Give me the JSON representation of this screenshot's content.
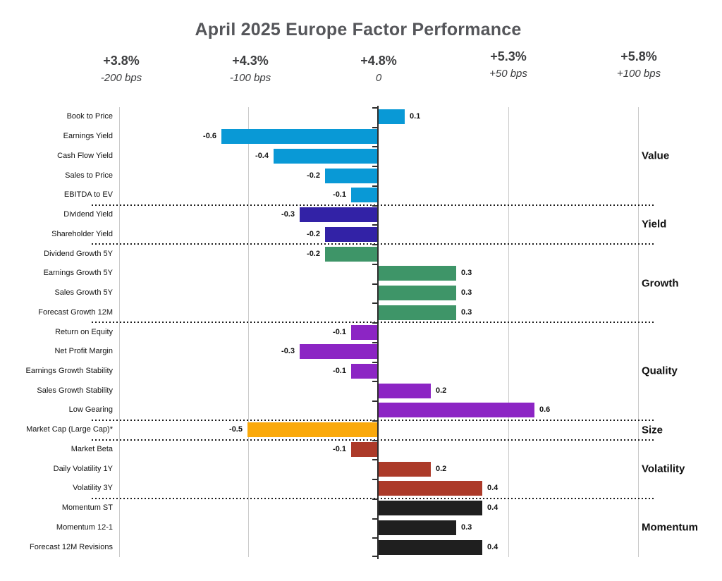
{
  "title": "April 2025 Europe Factor Performance",
  "chart_data": {
    "type": "bar",
    "orientation": "horizontal",
    "title": "April 2025 Europe Factor Performance",
    "x_axis": {
      "ticks": [
        {
          "label": "+3.8%",
          "sub": "-200 bps"
        },
        {
          "label": "+4.3%",
          "sub": "-100 bps"
        },
        {
          "label": "+4.8%",
          "sub": "0"
        },
        {
          "label": "+5.3%",
          "sub": "+50 bps"
        },
        {
          "label": "+5.8%",
          "sub": "+100 bps"
        }
      ],
      "zero_at": "+4.8%",
      "grid": true
    },
    "value_label_format": "one_decimal",
    "groups": [
      {
        "label": "Value",
        "color": "#0999D6",
        "rows": [
          {
            "label": "Book to Price",
            "value": 0.1
          },
          {
            "label": "Earnings Yield",
            "value": -0.6
          },
          {
            "label": "Cash Flow Yield",
            "value": -0.4
          },
          {
            "label": "Sales to Price",
            "value": -0.2
          },
          {
            "label": "EBITDA to EV",
            "value": -0.1
          }
        ]
      },
      {
        "label": "Yield",
        "color": "#3222A6",
        "rows": [
          {
            "label": "Dividend Yield",
            "value": -0.3
          },
          {
            "label": "Shareholder Yield",
            "value": -0.2
          }
        ]
      },
      {
        "label": "Growth",
        "color": "#3E9568",
        "rows": [
          {
            "label": "Dividend Growth 5Y",
            "value": -0.2
          },
          {
            "label": "Earnings Growth 5Y",
            "value": 0.3
          },
          {
            "label": "Sales Growth 5Y",
            "value": 0.3
          },
          {
            "label": "Forecast Growth 12M",
            "value": 0.3
          }
        ]
      },
      {
        "label": "Quality",
        "color": "#8C25C4",
        "rows": [
          {
            "label": "Return on Equity",
            "value": -0.1
          },
          {
            "label": "Net Profit Margin",
            "value": -0.3
          },
          {
            "label": "Earnings Growth Stability",
            "value": -0.1
          },
          {
            "label": "Sales Growth Stability",
            "value": 0.2
          },
          {
            "label": "Low Gearing",
            "value": 0.6
          }
        ]
      },
      {
        "label": "Size",
        "color": "#FAA90C",
        "rows": [
          {
            "label": "Market Cap (Large Cap)*",
            "value": -0.5
          }
        ]
      },
      {
        "label": "Volatility",
        "color": "#AC3A29",
        "rows": [
          {
            "label": "Market Beta",
            "value": -0.1
          },
          {
            "label": "Daily Volatility 1Y",
            "value": 0.2
          },
          {
            "label": "Volatility 3Y",
            "value": 0.4
          }
        ]
      },
      {
        "label": "Momentum",
        "color": "#1F1F1F",
        "rows": [
          {
            "label": "Momentum ST",
            "value": 0.4
          },
          {
            "label": "Momentum 12-1",
            "value": 0.3
          },
          {
            "label": "Forecast 12M Revisions",
            "value": 0.4
          }
        ]
      }
    ]
  }
}
